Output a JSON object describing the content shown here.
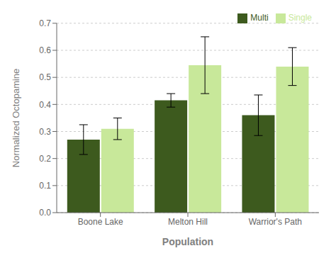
{
  "chart_data": {
    "type": "bar",
    "categories": [
      "Boone Lake",
      "Melton Hill",
      "Warrior's Path"
    ],
    "series": [
      {
        "name": "Multi",
        "color": "#3d5a1e",
        "values": [
          0.27,
          0.415,
          0.36
        ],
        "errors": [
          0.055,
          0.025,
          0.075
        ]
      },
      {
        "name": "Single",
        "color": "#c8e89a",
        "values": [
          0.31,
          0.545,
          0.54
        ],
        "errors": [
          0.04,
          0.105,
          0.07
        ]
      }
    ],
    "xlabel": "Population",
    "ylabel": "Normalized Octopamine",
    "ylim": [
      0,
      0.7
    ],
    "yticks": [
      {
        "value": 0,
        "label": "0.0"
      },
      0.1,
      0.2,
      0.3,
      0.4,
      0.5,
      0.6,
      0.7
    ],
    "grid": true,
    "legend": "upper right"
  }
}
